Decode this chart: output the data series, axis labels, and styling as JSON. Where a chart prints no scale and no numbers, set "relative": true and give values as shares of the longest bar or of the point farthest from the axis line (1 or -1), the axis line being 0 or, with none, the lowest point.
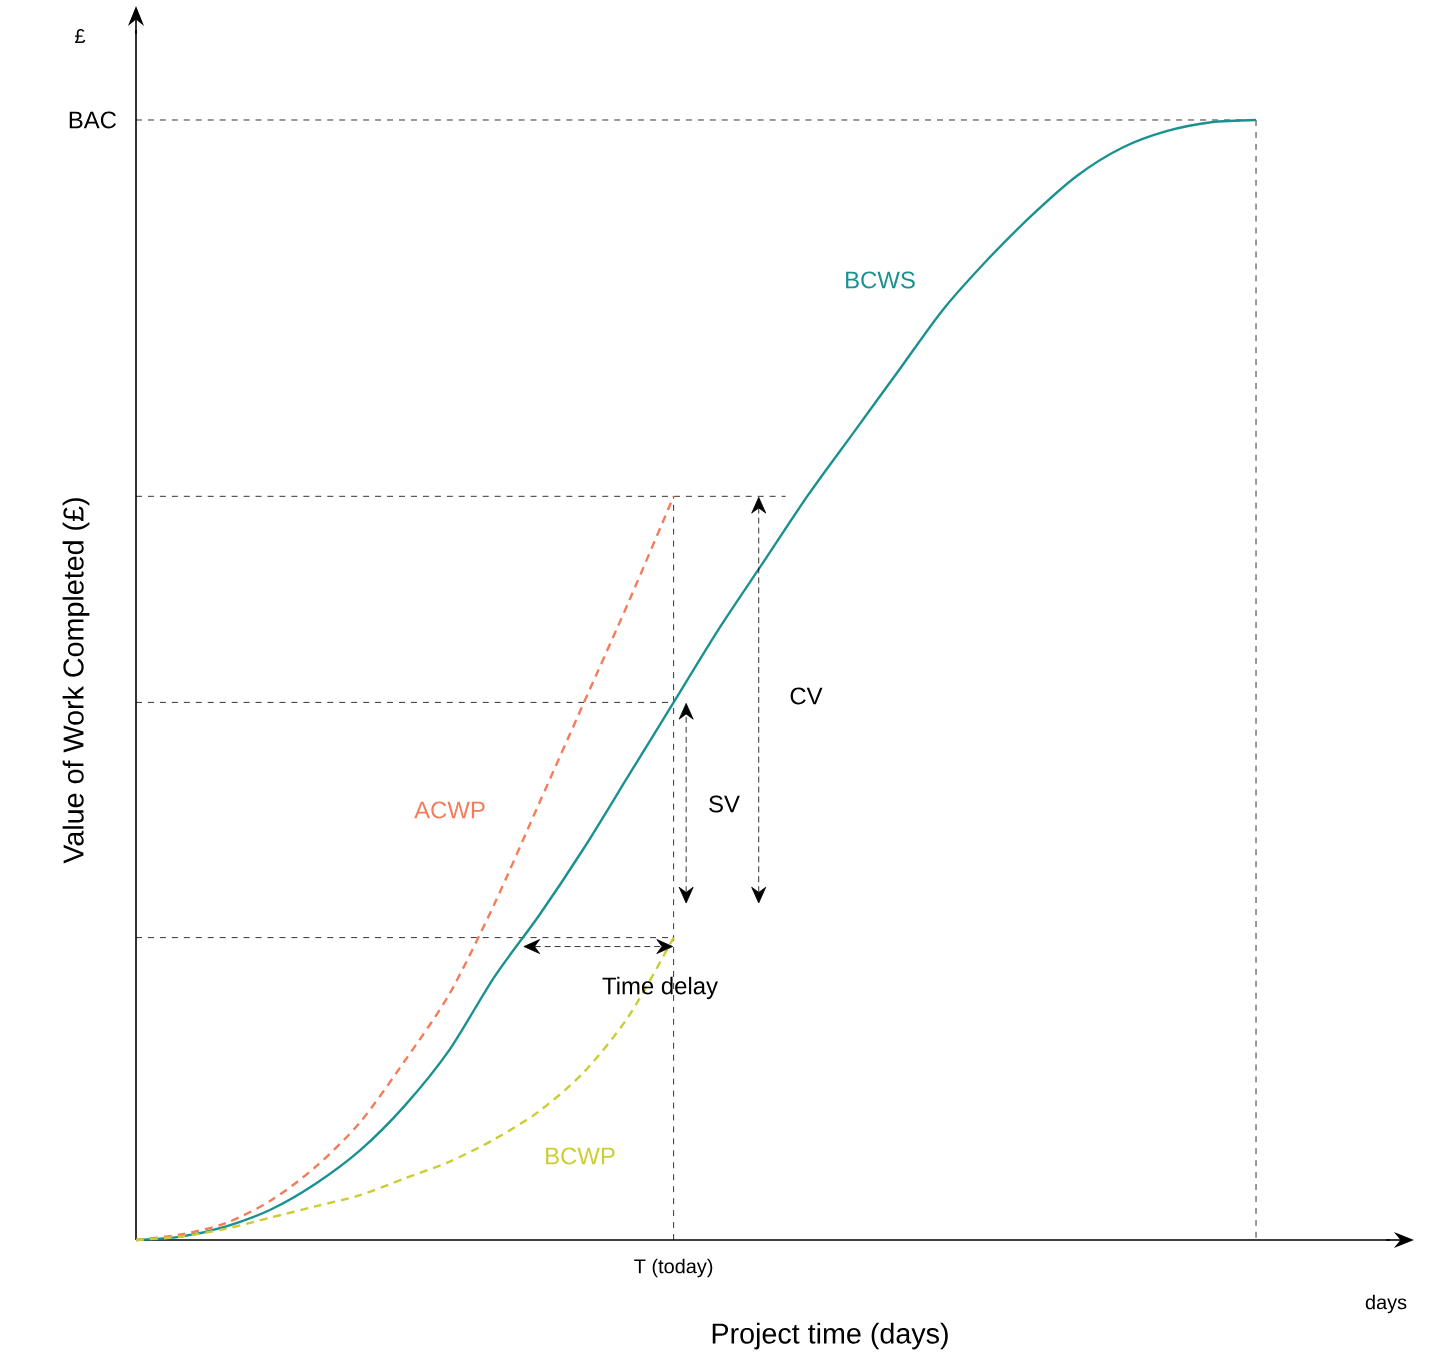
{
  "chart_data": {
    "type": "line",
    "relative": true,
    "xlabel": "Project time (days)",
    "ylabel": "Value of Work Completed (£)",
    "categories": [
      null,
      null,
      null,
      null,
      null,
      null,
      null,
      null,
      null,
      null,
      null,
      null,
      null,
      null,
      null,
      null,
      null,
      null,
      null,
      null,
      null,
      null,
      null,
      null,
      null,
      null
    ],
    "series": [
      {
        "name": "BCWS",
        "color": "#1a9191",
        "line_style": "solid",
        "values": [
          0,
          0.003,
          0.012,
          0.027,
          0.05,
          0.08,
          0.12,
          0.17,
          0.235,
          0.29,
          0.35,
          0.415,
          0.48,
          0.545,
          0.605,
          0.665,
          0.72,
          0.775,
          0.83,
          0.875,
          0.915,
          0.95,
          0.975,
          0.99,
          0.998,
          1
        ]
      },
      {
        "name": "ACWP",
        "color": "#f47c5a",
        "line_style": "dashed",
        "values": [
          0,
          0.005,
          0.015,
          0.035,
          0.065,
          0.105,
          0.16,
          0.22,
          0.3,
          0.39,
          0.48,
          0.57,
          0.664,
          null,
          null,
          null,
          null,
          null,
          null,
          null,
          null,
          null,
          null,
          null,
          null,
          null
        ]
      },
      {
        "name": "BCWP",
        "color": "#cccc33",
        "line_style": "dashed",
        "values": [
          0,
          0.003,
          0.01,
          0.02,
          0.03,
          0.04,
          0.055,
          0.07,
          0.09,
          0.115,
          0.15,
          0.2,
          0.27,
          null,
          null,
          null,
          null,
          null,
          null,
          null,
          null,
          null,
          null,
          null,
          null,
          null
        ]
      }
    ],
    "ref_lines": [
      {
        "axis": "y",
        "value": 1,
        "label": "BAC",
        "line_style": "dashed"
      },
      {
        "axis": "y",
        "value": 0.664,
        "label": null,
        "line_style": "dashed"
      },
      {
        "axis": "y",
        "value": 0.48,
        "label": null,
        "line_style": "dashed"
      },
      {
        "axis": "y",
        "value": 0.27,
        "label": null,
        "line_style": "dashed"
      }
    ],
    "annotations": [
      "£",
      "days",
      "SV",
      "CV",
      "Time delay",
      "T (today)"
    ],
    "legend": false
  }
}
